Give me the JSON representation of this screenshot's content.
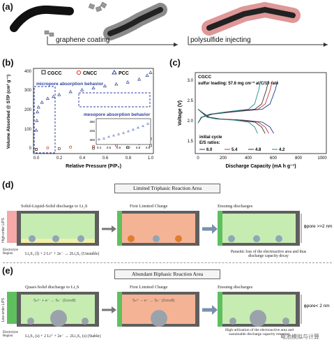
{
  "panels": {
    "a": {
      "label": "(a)",
      "step1": "graphene coating",
      "step2": "polysulfide injecting"
    },
    "b": {
      "label": "(b)",
      "legend": [
        "CGCC",
        "CNCC",
        "PCC"
      ],
      "ylabel": "Volume Absorbed @ STP (cm³ g⁻¹)",
      "xlabel": "Relative Pressure (P/P₀)",
      "annotation_micro": "micropore absorption behavior",
      "annotation_meso": "mesopore absorption behavior",
      "yticks": [
        "0",
        "100",
        "200",
        "300",
        "400"
      ],
      "xticks": [
        "0.0",
        "0.2",
        "0.4",
        "0.6",
        "0.8",
        "1.0"
      ],
      "inset_yticks": [
        "350",
        "325",
        "300"
      ],
      "inset_xticks": [
        "0.4",
        "0.5",
        "0.6",
        "0.7",
        "0.8",
        "0.9"
      ]
    },
    "c": {
      "label": "(c)",
      "title": "CGCC",
      "subtitle": "sulfur loading: 57.6 mg cm⁻² at C/10 rate",
      "ylabel": "Voltage (V)",
      "xlabel": "Discharge Capacity (mA h g⁻¹)",
      "note1": "initial cycle",
      "note2": "E/S ratios:",
      "ratios": [
        "6.0",
        "5.4",
        "4.8",
        "4.2"
      ],
      "yticks": [
        "1.5",
        "2.0",
        "2.5",
        "3.0"
      ],
      "xticks": [
        "0",
        "200",
        "400",
        "600",
        "800",
        "1000"
      ]
    },
    "d": {
      "label": "(d)",
      "title": "Limited Triphasic Reaction Area",
      "col1_title": "Solid-Liquid-Solid discharge to Li₂S",
      "col2_title": "First Limited Charge",
      "col3_title": "Ensuing discharges",
      "side_label": "High-order LiPS",
      "electrolyte": "Electrolyte Region",
      "reaction": "Li₂S₄ (l) + 2 Li⁺ + 2e⁻ → 2Li₂S₂ (Unstable)",
      "note": "Parasitic loss of the electroactive area and thus discharge capacity decay",
      "pore": "ϕpore >>2 nm"
    },
    "e": {
      "label": "(e)",
      "title": "Abundant Biphasic Reaction Area",
      "col1_title": "Quasi-Solid discharge to Li₂S",
      "col2_title": "First Limited Charge",
      "col3_title": "Ensuing discharges",
      "side_label": "Low-order LiPS",
      "electrolyte": "Electrolyte Region",
      "reaction": "Li₂S₄ (s) + 2 Li⁺ + 2e⁻ → 2Li₂S₂ (s) (Stable)",
      "note": "High utilization of the electroactive area and sustainable discharge capacity retention",
      "pore": "ϕpore< 2 nm",
      "eq1": "Sₙ²⁻ + e⁻ → Sₙ⁻ (2≤n≤8)",
      "eq2": "Sₙ²⁻ − e⁻ → Sₙ⁻ (2≤n≤8)"
    }
  },
  "watermark": "电池模拟与计算",
  "colors": {
    "cgcc": "#222222",
    "cncc": "#d23a2a",
    "pcc": "#2c3f9e",
    "green": "#bde7a8",
    "pink": "#f5a48e",
    "dark": "#5c5c5c"
  }
}
